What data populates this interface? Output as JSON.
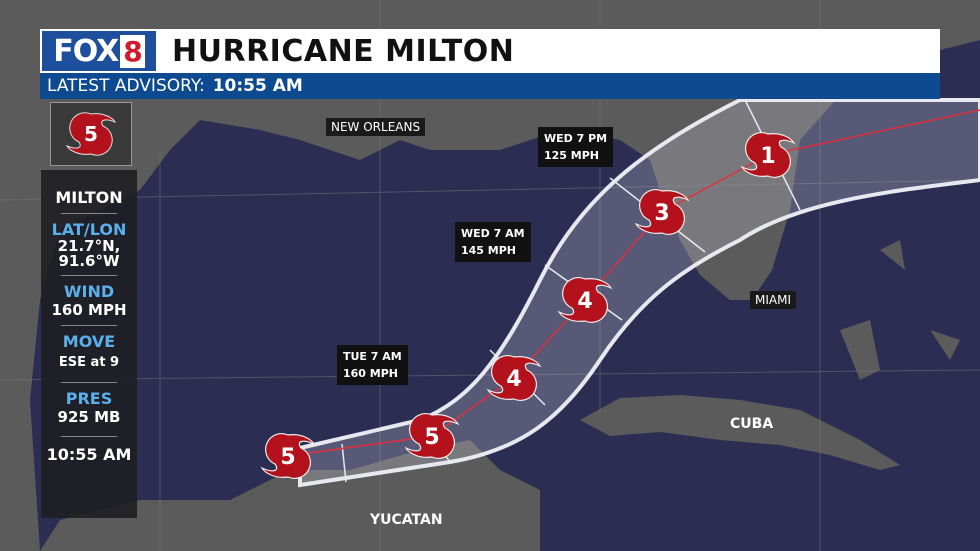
{
  "header": {
    "logo": "FOX8",
    "logo_main": "FOX",
    "logo_num": "8",
    "title": "HURRICANE MILTON",
    "advisory_label": "LATEST ADVISORY:",
    "advisory_time": "10:55 AM"
  },
  "storm": {
    "category_icon": "hurricane-icon",
    "category": "5",
    "name": "MILTON",
    "latlon_label": "LAT/LON",
    "lat": "21.7°N,",
    "lon": "91.6°W",
    "wind_label": "WIND",
    "wind": "160 MPH",
    "move_label": "MOVE",
    "move": "ESE at 9",
    "pres_label": "PRES",
    "pres": "925 MB",
    "time": "10:55 AM"
  },
  "forecast_points": [
    {
      "category": "5"
    },
    {
      "category": "5"
    },
    {
      "category": "4"
    },
    {
      "category": "4"
    },
    {
      "category": "3"
    },
    {
      "category": "1"
    }
  ],
  "labels": [
    {
      "time": "TUE 7 AM",
      "wind": "160 MPH"
    },
    {
      "time": "WED 7 AM",
      "wind": "145 MPH"
    },
    {
      "time": "WED 7 PM",
      "wind": "125 MPH"
    }
  ],
  "cities": {
    "new_orleans": "NEW ORLEANS",
    "miami": "MIAMI",
    "cuba": "CUBA",
    "yucatan": "YUCATAN"
  },
  "colors": {
    "land": "#5b5b5b",
    "ocean": "#2b2e52",
    "hurricane": "#b3121c",
    "brand_blue": "#0e4a8f",
    "accent_text": "#5ab0ea"
  }
}
